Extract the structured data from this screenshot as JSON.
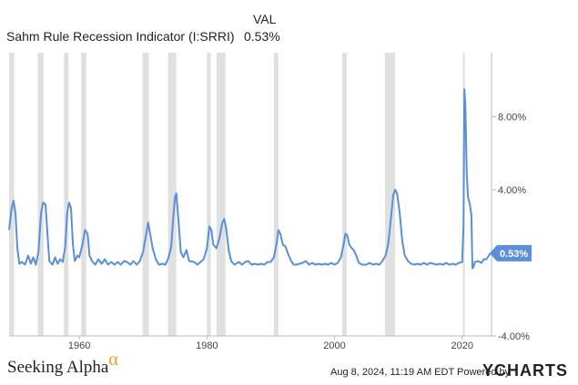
{
  "legend": {
    "column_header": "VAL",
    "series_name": "Sahm Rule Recession Indicator (I:SRRI)",
    "series_value": "0.53%"
  },
  "footer": {
    "brand": "Seeking Alpha",
    "brand_symbol": "α",
    "timestamp": "Aug 8, 2024, 11:19 AM EDT",
    "powered_by": "Powered by",
    "logo": "YCHARTS"
  },
  "colors": {
    "line": "#5b8fd6",
    "recession_band": "#e0e0e0",
    "badge": "#5b8fd6",
    "brand_alpha": "#f39a1e"
  },
  "chart_data": {
    "type": "line",
    "title": "",
    "xlabel": "",
    "ylabel": "",
    "xlim": [
      1949,
      2024.6
    ],
    "ylim": [
      -4,
      11.5
    ],
    "x_ticks": [
      1960,
      1980,
      2000,
      2020
    ],
    "y_ticks": [
      -4,
      4,
      8
    ],
    "y_tick_labels": [
      "-4.00%",
      "4.00%",
      "8.00%"
    ],
    "grid": false,
    "last_value_label": "0.53%",
    "recessions": [
      [
        1949.0,
        1949.8
      ],
      [
        1953.5,
        1954.4
      ],
      [
        1957.6,
        1958.3
      ],
      [
        1960.3,
        1961.1
      ],
      [
        1969.9,
        1970.9
      ],
      [
        1973.9,
        1975.2
      ],
      [
        1980.0,
        1980.6
      ],
      [
        1981.5,
        1982.9
      ],
      [
        1990.5,
        1991.2
      ],
      [
        2001.2,
        2001.9
      ],
      [
        2007.9,
        2009.5
      ],
      [
        2020.1,
        2020.4
      ]
    ],
    "series": [
      {
        "points": [
          [
            1949.0,
            1.8
          ],
          [
            1949.4,
            3.0
          ],
          [
            1949.7,
            3.4
          ],
          [
            1950.0,
            2.7
          ],
          [
            1950.3,
            0.8
          ],
          [
            1950.6,
            -0.05
          ],
          [
            1951.0,
            0.05
          ],
          [
            1951.5,
            -0.1
          ],
          [
            1952.0,
            0.4
          ],
          [
            1952.4,
            -0.05
          ],
          [
            1952.8,
            0.3
          ],
          [
            1953.2,
            -0.1
          ],
          [
            1953.6,
            0.6
          ],
          [
            1954.0,
            2.7
          ],
          [
            1954.3,
            3.3
          ],
          [
            1954.7,
            3.2
          ],
          [
            1955.0,
            1.6
          ],
          [
            1955.3,
            0.1
          ],
          [
            1955.8,
            -0.1
          ],
          [
            1956.2,
            0.3
          ],
          [
            1956.6,
            -0.05
          ],
          [
            1957.0,
            0.2
          ],
          [
            1957.4,
            0.05
          ],
          [
            1957.8,
            0.9
          ],
          [
            1958.1,
            2.7
          ],
          [
            1958.4,
            3.3
          ],
          [
            1958.7,
            3.0
          ],
          [
            1959.0,
            1.0
          ],
          [
            1959.3,
            0.1
          ],
          [
            1959.7,
            0.4
          ],
          [
            1960.0,
            0.3
          ],
          [
            1960.5,
            1.0
          ],
          [
            1960.9,
            1.8
          ],
          [
            1961.3,
            1.6
          ],
          [
            1961.6,
            0.4
          ],
          [
            1962.0,
            0.1
          ],
          [
            1962.5,
            -0.1
          ],
          [
            1963.0,
            0.2
          ],
          [
            1963.5,
            -0.05
          ],
          [
            1964.0,
            0.2
          ],
          [
            1964.5,
            -0.1
          ],
          [
            1965.0,
            0.05
          ],
          [
            1965.5,
            -0.1
          ],
          [
            1966.0,
            0.05
          ],
          [
            1966.5,
            -0.1
          ],
          [
            1967.0,
            0.1
          ],
          [
            1967.5,
            0.05
          ],
          [
            1968.0,
            -0.1
          ],
          [
            1968.5,
            0.1
          ],
          [
            1969.0,
            -0.1
          ],
          [
            1969.5,
            0.1
          ],
          [
            1970.0,
            0.6
          ],
          [
            1970.4,
            1.4
          ],
          [
            1970.8,
            2.2
          ],
          [
            1971.1,
            1.6
          ],
          [
            1971.5,
            0.8
          ],
          [
            1972.0,
            0.2
          ],
          [
            1972.5,
            -0.1
          ],
          [
            1973.0,
            -0.05
          ],
          [
            1973.5,
            -0.1
          ],
          [
            1974.0,
            0.3
          ],
          [
            1974.4,
            0.9
          ],
          [
            1974.7,
            2.4
          ],
          [
            1975.0,
            3.6
          ],
          [
            1975.2,
            3.8
          ],
          [
            1975.5,
            2.5
          ],
          [
            1975.9,
            0.6
          ],
          [
            1976.3,
            0.3
          ],
          [
            1976.8,
            0.7
          ],
          [
            1977.2,
            0.1
          ],
          [
            1978.0,
            0.05
          ],
          [
            1978.5,
            -0.1
          ],
          [
            1979.0,
            0.05
          ],
          [
            1979.5,
            0.2
          ],
          [
            1980.0,
            0.8
          ],
          [
            1980.4,
            2.0
          ],
          [
            1980.7,
            1.8
          ],
          [
            1981.0,
            1.0
          ],
          [
            1981.5,
            0.8
          ],
          [
            1982.0,
            1.4
          ],
          [
            1982.4,
            2.2
          ],
          [
            1982.7,
            2.4
          ],
          [
            1983.0,
            1.9
          ],
          [
            1983.4,
            0.7
          ],
          [
            1983.8,
            0.1
          ],
          [
            1984.3,
            -0.1
          ],
          [
            1985.0,
            0.05
          ],
          [
            1985.5,
            -0.1
          ],
          [
            1986.0,
            0.05
          ],
          [
            1986.5,
            0.1
          ],
          [
            1987.0,
            -0.1
          ],
          [
            1987.5,
            -0.05
          ],
          [
            1988.0,
            -0.1
          ],
          [
            1988.5,
            -0.05
          ],
          [
            1989.0,
            -0.1
          ],
          [
            1989.5,
            0.05
          ],
          [
            1990.0,
            0.05
          ],
          [
            1990.5,
            0.3
          ],
          [
            1990.9,
            1.0
          ],
          [
            1991.2,
            1.8
          ],
          [
            1991.5,
            1.6
          ],
          [
            1991.9,
            1.0
          ],
          [
            1992.3,
            0.9
          ],
          [
            1992.7,
            0.5
          ],
          [
            1993.2,
            0.1
          ],
          [
            1993.6,
            -0.1
          ],
          [
            1994.0,
            -0.1
          ],
          [
            1995.0,
            0.0
          ],
          [
            1995.5,
            0.1
          ],
          [
            1996.0,
            -0.1
          ],
          [
            1996.5,
            0.0
          ],
          [
            1997.0,
            -0.1
          ],
          [
            1997.5,
            -0.05
          ],
          [
            1998.0,
            -0.1
          ],
          [
            1998.5,
            -0.05
          ],
          [
            1999.0,
            -0.1
          ],
          [
            1999.5,
            0.0
          ],
          [
            2000.0,
            -0.1
          ],
          [
            2000.5,
            0.0
          ],
          [
            2001.0,
            0.3
          ],
          [
            2001.4,
            1.0
          ],
          [
            2001.7,
            1.6
          ],
          [
            2002.0,
            1.5
          ],
          [
            2002.3,
            1.0
          ],
          [
            2002.7,
            0.8
          ],
          [
            2003.0,
            0.7
          ],
          [
            2003.4,
            0.4
          ],
          [
            2003.8,
            0.0
          ],
          [
            2004.3,
            -0.1
          ],
          [
            2005.0,
            -0.1
          ],
          [
            2005.5,
            0.0
          ],
          [
            2006.0,
            -0.1
          ],
          [
            2006.5,
            -0.05
          ],
          [
            2007.0,
            -0.1
          ],
          [
            2007.5,
            0.1
          ],
          [
            2008.0,
            0.4
          ],
          [
            2008.4,
            1.0
          ],
          [
            2008.8,
            2.3
          ],
          [
            2009.2,
            3.7
          ],
          [
            2009.5,
            4.0
          ],
          [
            2009.8,
            3.8
          ],
          [
            2010.2,
            2.8
          ],
          [
            2010.6,
            1.2
          ],
          [
            2011.0,
            0.4
          ],
          [
            2011.5,
            0.1
          ],
          [
            2012.0,
            -0.05
          ],
          [
            2012.5,
            -0.1
          ],
          [
            2013.0,
            -0.05
          ],
          [
            2013.5,
            -0.1
          ],
          [
            2014.0,
            0.0
          ],
          [
            2014.5,
            -0.1
          ],
          [
            2015.0,
            0.0
          ],
          [
            2015.5,
            -0.05
          ],
          [
            2016.0,
            -0.1
          ],
          [
            2016.5,
            -0.05
          ],
          [
            2017.0,
            -0.1
          ],
          [
            2017.5,
            0.0
          ],
          [
            2018.0,
            -0.1
          ],
          [
            2018.5,
            -0.05
          ],
          [
            2019.0,
            -0.1
          ],
          [
            2019.5,
            0.0
          ],
          [
            2020.0,
            0.05
          ],
          [
            2020.2,
            2.0
          ],
          [
            2020.35,
            9.5
          ],
          [
            2020.5,
            8.6
          ],
          [
            2020.7,
            5.0
          ],
          [
            2020.9,
            3.6
          ],
          [
            2021.2,
            3.2
          ],
          [
            2021.45,
            2.6
          ],
          [
            2021.6,
            -0.3
          ],
          [
            2021.8,
            -0.2
          ],
          [
            2022.0,
            0.05
          ],
          [
            2022.5,
            0.1
          ],
          [
            2023.0,
            0.0
          ],
          [
            2023.4,
            0.2
          ],
          [
            2023.8,
            0.2
          ],
          [
            2024.1,
            0.35
          ],
          [
            2024.4,
            0.53
          ]
        ]
      }
    ]
  }
}
